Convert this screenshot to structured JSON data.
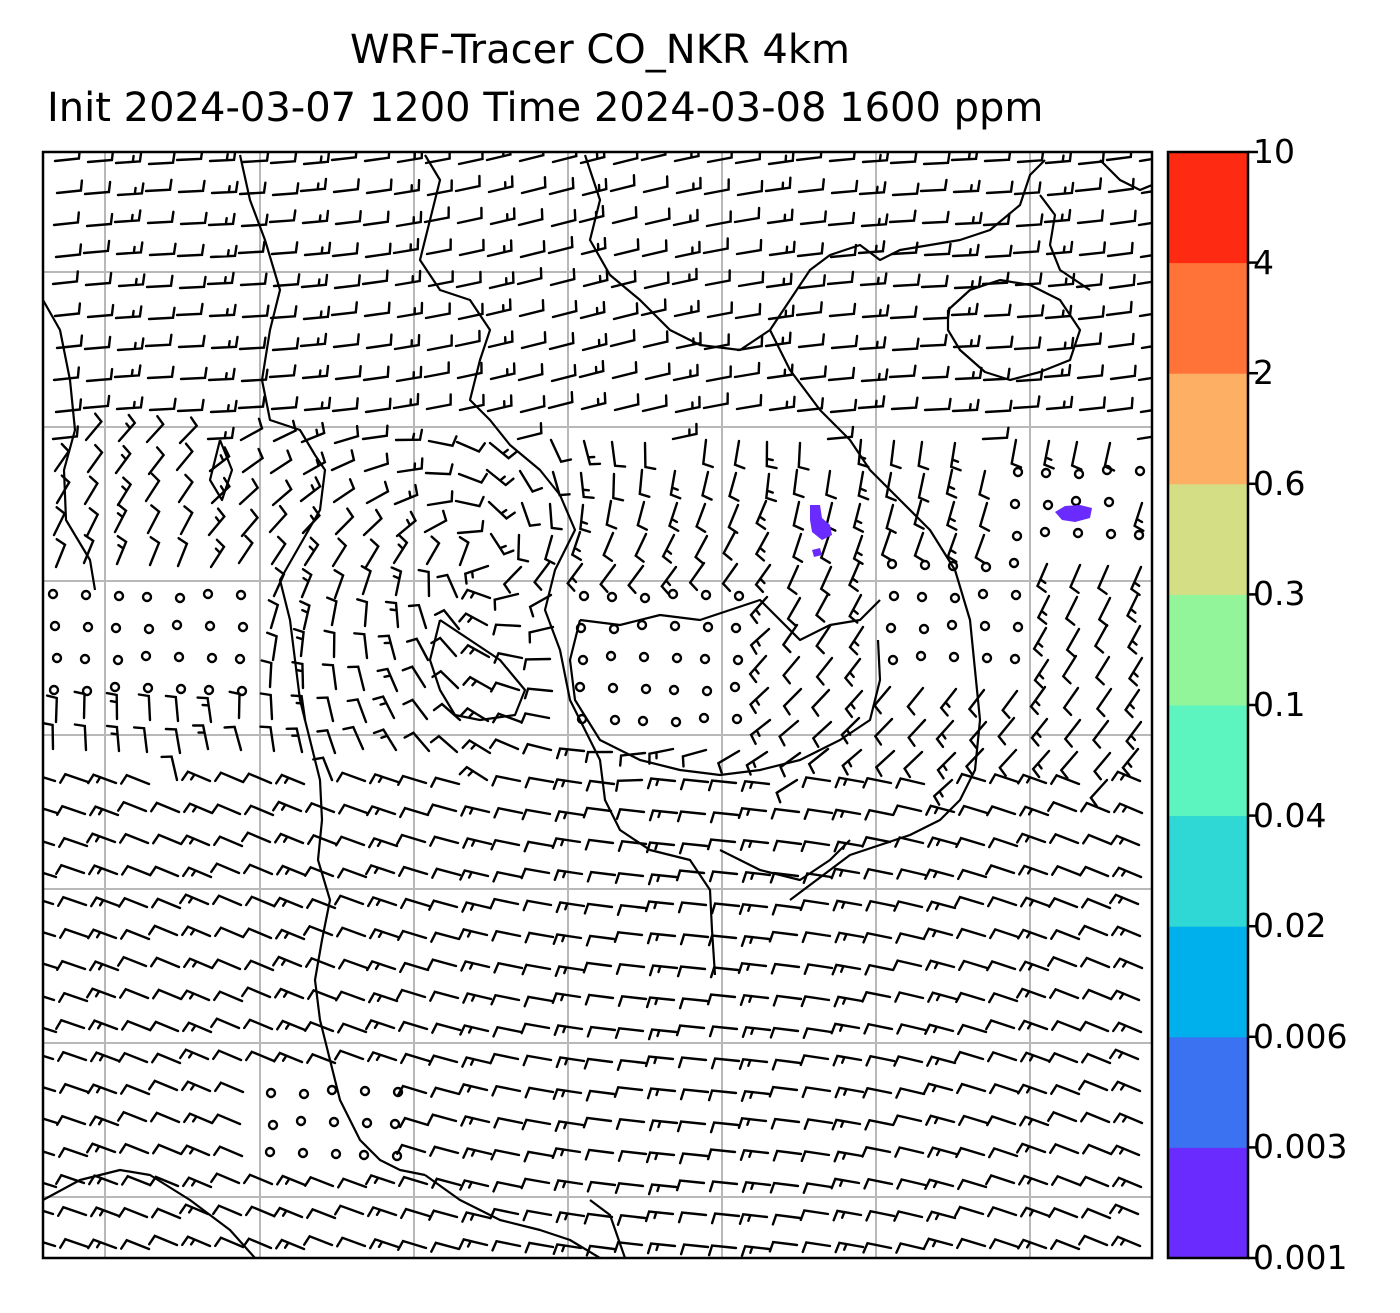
{
  "title": {
    "line1": "WRF-Tracer CO_NKR 4km",
    "line2": "Init 2024-03-07 1200 Time 2024-03-08 1600 ppm"
  },
  "colorbar": {
    "levels": [
      {
        "label": "0.001",
        "color": "#6a2bff"
      },
      {
        "label": "0.003",
        "color": "#3a72f2"
      },
      {
        "label": "0.006",
        "color": "#00b0ed"
      },
      {
        "label": "0.02",
        "color": "#2fd8d4"
      },
      {
        "label": "0.04",
        "color": "#5cf5c0"
      },
      {
        "label": "0.1",
        "color": "#92f59a"
      },
      {
        "label": "0.3",
        "color": "#d4de84"
      },
      {
        "label": "0.6",
        "color": "#fdb063"
      },
      {
        "label": "2",
        "color": "#ff7238"
      },
      {
        "label": "4",
        "color": "#ff2a12"
      },
      {
        "label": "10",
        "color": "#ff2a12"
      }
    ]
  },
  "map": {
    "gridlines": true,
    "gridline_color": "#b8b8b8",
    "coastline_color": "#000000",
    "overlay": "wind barbs",
    "tracer_color": "#6a2bff"
  }
}
